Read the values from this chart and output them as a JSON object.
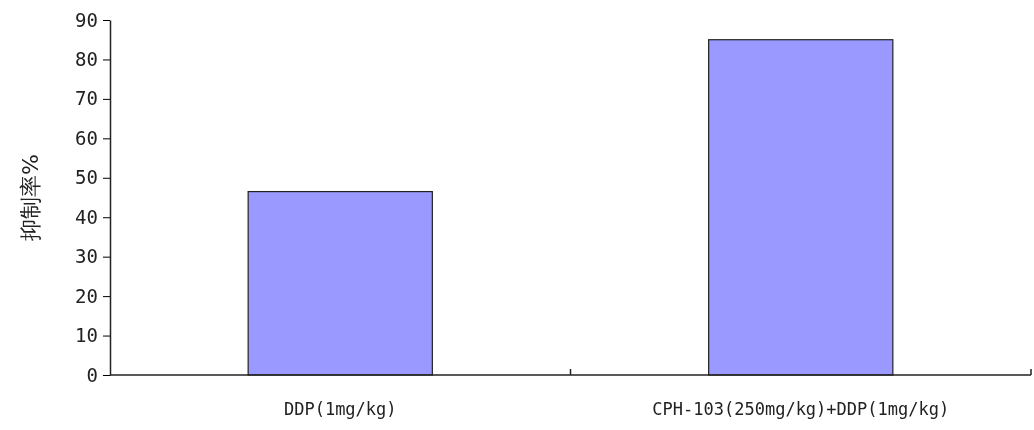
{
  "chart_data": {
    "type": "bar",
    "ylabel": "抑制率%",
    "categories": [
      "DDP(1mg/kg)",
      "CPH-103(250mg/kg)+DDP(1mg/kg)"
    ],
    "values": [
      46.5,
      85
    ],
    "color": "#9999ff",
    "ylim": [
      0,
      90
    ],
    "yticks": [
      0,
      10,
      20,
      30,
      40,
      50,
      60,
      70,
      80,
      90
    ]
  }
}
